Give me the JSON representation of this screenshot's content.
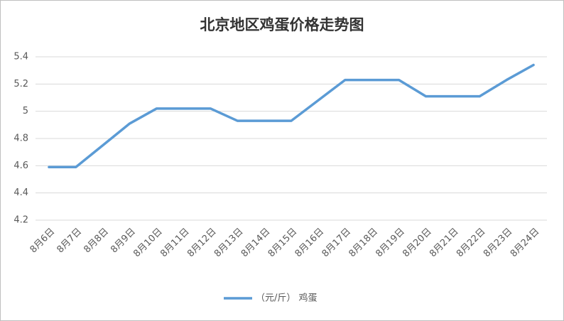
{
  "chart_data": {
    "type": "line",
    "title": "北京地区鸡蛋价格走势图",
    "categories": [
      "8月6日",
      "8月7日",
      "8月8日",
      "8月9日",
      "8月10日",
      "8月11日",
      "8月12日",
      "8月13日",
      "8月14日",
      "8月15日",
      "8月16日",
      "8月17日",
      "8月18日",
      "8月19日",
      "8月20日",
      "8月21日",
      "8月22日",
      "8月23日",
      "8月24日"
    ],
    "series": [
      {
        "name": "（元/斤） 鸡蛋",
        "color": "#5b9bd5",
        "values": [
          4.59,
          4.59,
          4.75,
          4.91,
          5.02,
          5.02,
          5.02,
          4.93,
          4.93,
          4.93,
          5.08,
          5.23,
          5.23,
          5.23,
          5.11,
          5.11,
          5.11,
          5.23,
          5.34
        ]
      }
    ],
    "ylim": [
      4.2,
      5.4
    ],
    "yticks": [
      4.2,
      4.4,
      4.6,
      4.8,
      5,
      5.2,
      5.4
    ],
    "grid": true,
    "legend": "bottom"
  }
}
